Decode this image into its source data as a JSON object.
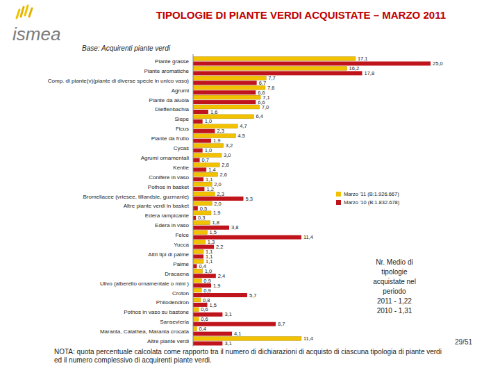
{
  "chart_data": {
    "type": "bar",
    "orientation": "horizontal",
    "title": "TIPOLOGIE DI PIANTE VERDI ACQUISTATE – MARZO 2011",
    "subtitle": "Base: Acquirenti piante verdi",
    "logo": "ismea",
    "categories": [
      "Piante grasse",
      "Piante aromatiche",
      "Comp. di piante(v)(piante di diverse specie in unico vaso)",
      "Agrumi",
      "Piante da aiuola",
      "Dieffenbachia",
      "Siepe",
      "Ficus",
      "Piante da frutto",
      "Cycas",
      "Agrumi ornamentali",
      "Kentie",
      "Conifere in vaso",
      "Pothos in basket",
      "Bromeliacee (vriesee, tillandsie, guzmanie)",
      "Altre piante verdi in basket",
      "Edera rampicante",
      "Edera in vaso",
      "Felce",
      "Yucca",
      "Altri tipi di palme",
      "Palme",
      "Dracaena",
      "Ulivo (alberello ornamentale o mini )",
      "Croton",
      "Philodendron",
      "Pothos in vaso su bastone",
      "Sansevieria",
      "Maranta, Calathea, Maranta crocata",
      "Altre piante verdi"
    ],
    "series": [
      {
        "name": "Marzo '11 (B:1.926.667)",
        "color": "#f2c200",
        "values": [
          17.1,
          16.2,
          7.7,
          7.6,
          7.1,
          7.0,
          6.4,
          4.7,
          4.5,
          3.2,
          3.0,
          2.8,
          2.6,
          2.0,
          2.3,
          2.0,
          1.9,
          1.8,
          1.5,
          1.3,
          1.1,
          1.1,
          1.0,
          0.9,
          0.9,
          0.8,
          0.6,
          0.6,
          0.4,
          11.4
        ],
        "value_labels": [
          "17,1",
          "16,2",
          "7,7",
          "7,6",
          "7,1",
          "7,0",
          "6,4",
          "4,7",
          "4,5",
          "3,2",
          "3,0",
          "2,8",
          "2,6",
          "2,0",
          "2,3",
          "2,0",
          "1,9",
          "1,8",
          "1,5",
          "1,3",
          "1,1",
          "1,1",
          "1,0",
          "0,9",
          "0,9",
          "0,8",
          "0,6",
          "0,6",
          "0,4",
          "11,4"
        ]
      },
      {
        "name": "Marzo '10 (B:1.832.678)",
        "color": "#c0141c",
        "values": [
          25.0,
          17.8,
          6.7,
          6.6,
          6.6,
          1.6,
          1.0,
          2.3,
          1.9,
          1.0,
          0.7,
          1.4,
          1.1,
          1.2,
          5.3,
          0.5,
          0.3,
          3.8,
          11.4,
          2.2,
          1.1,
          0.4,
          2.4,
          1.9,
          5.7,
          1.5,
          3.1,
          8.7,
          4.1,
          3.1
        ],
        "value_labels": [
          "25,0",
          "17,8",
          "6,7",
          "6,6",
          "6,6",
          "1,6",
          "1,0",
          "2,3",
          "1,9",
          "1,0",
          "0,7",
          "1,4",
          "1,1",
          "1,2",
          "5,3",
          "0,5",
          "0,3",
          "3,8",
          "11,4",
          "2,2",
          "1,1",
          "0,4",
          "2,4",
          "1,9",
          "5,7",
          "1,5",
          "3,1",
          "8,7",
          "4,1",
          "3,1"
        ]
      }
    ],
    "xlim": [
      0,
      25
    ],
    "tick_labels": "y",
    "grid": false,
    "data_labels": true,
    "legend": "right",
    "annotation": [
      "Nr. Medio di",
      "tipologie",
      "acquistate nel",
      "periodo",
      "2011 - 1,22",
      "2010 - 1,31"
    ],
    "note": "NOTA: quota percentuale calcolata come rapporto tra il numero di dichiarazioni di acquisto di ciascuna tipologia di piante verdi ed il numero complessivo di acquirenti piante verdi.",
    "page": "29/51"
  }
}
